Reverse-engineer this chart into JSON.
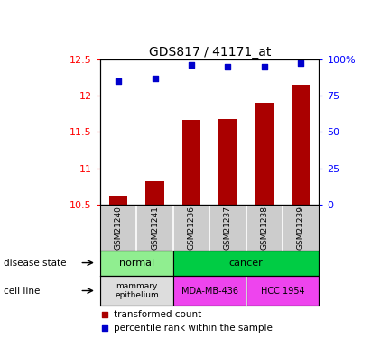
{
  "title": "GDS817 / 41171_at",
  "samples": [
    "GSM21240",
    "GSM21241",
    "GSM21236",
    "GSM21237",
    "GSM21238",
    "GSM21239"
  ],
  "bar_values": [
    10.62,
    10.82,
    11.67,
    11.68,
    11.9,
    12.15
  ],
  "percentile_values": [
    85,
    87,
    96,
    95,
    95,
    97
  ],
  "bar_bottom": 10.5,
  "ylim_left": [
    10.5,
    12.5
  ],
  "ylim_right": [
    0,
    100
  ],
  "yticks_left": [
    10.5,
    11.0,
    11.5,
    12.0,
    12.5
  ],
  "ytick_labels_left": [
    "10.5",
    "11",
    "11.5",
    "12",
    "12.5"
  ],
  "yticks_right": [
    0,
    25,
    50,
    75,
    100
  ],
  "ytick_labels_right": [
    "0",
    "25",
    "50",
    "75",
    "100%"
  ],
  "bar_color": "#aa0000",
  "dot_color": "#0000cc",
  "grid_lines": [
    11.0,
    11.5,
    12.0
  ],
  "normal_color": "#90EE90",
  "cancer_color": "#00CC44",
  "mammary_color": "#DDDDDD",
  "cell_color": "#EE44EE",
  "background_color": "#ffffff",
  "tick_bg_color": "#CCCCCC",
  "title_fontsize": 10,
  "bar_width": 0.5
}
